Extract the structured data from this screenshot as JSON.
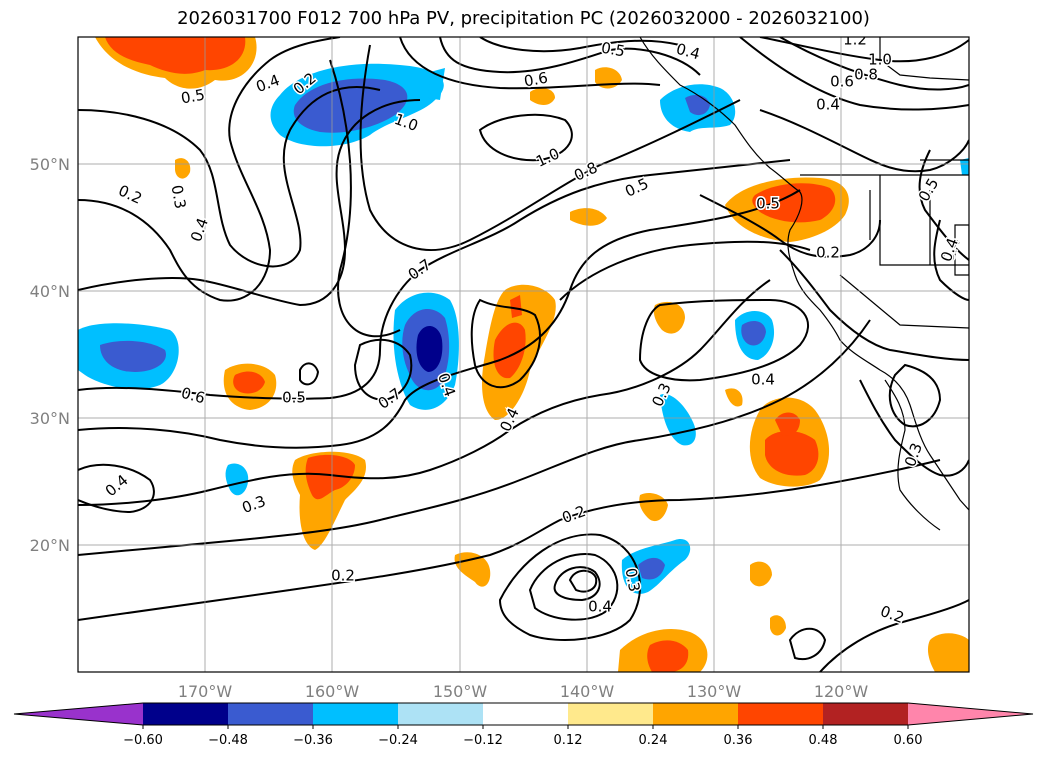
{
  "title": "2026031700 F012 700 hPa PV, precipitation PC (2026032000 - 2026032100)",
  "lat_labels": [
    "50°N",
    "40°N",
    "30°N",
    "20°N"
  ],
  "lon_labels": [
    "170°W",
    "160°W",
    "150°W",
    "140°W",
    "130°W",
    "120°W"
  ],
  "colorbar": {
    "colors": [
      "#9932cc",
      "#00008b",
      "#3a5bd0",
      "#00bfff",
      "#ade2f5",
      "#ffffff",
      "#ffe98c",
      "#ffa500",
      "#ff4500",
      "#b22222",
      "#ff85ab"
    ],
    "tick_labels": [
      "−0.60",
      "−0.48",
      "−0.36",
      "−0.24",
      "−0.12",
      "0.12",
      "0.24",
      "0.36",
      "0.48",
      "0.60"
    ]
  },
  "contour_labels": [
    "0.5",
    "0.4",
    "0.2",
    "0.3",
    "0.4",
    "0.2",
    "1.0",
    "0.5",
    "0.4",
    "0.6",
    "1.2",
    "1.0",
    "0.8",
    "0.6",
    "0.4",
    "1.0",
    "0.8",
    "0.5",
    "0.5",
    "0.5",
    "0.2",
    "0.4",
    "0.7",
    "0.7",
    "0.4",
    "0.4",
    "0.6",
    "0.5",
    "0.3",
    "0.4",
    "0.3",
    "0.4",
    "0.3",
    "0.2",
    "0.4",
    "0.3",
    "0.2",
    "0.2",
    "0.4"
  ]
}
